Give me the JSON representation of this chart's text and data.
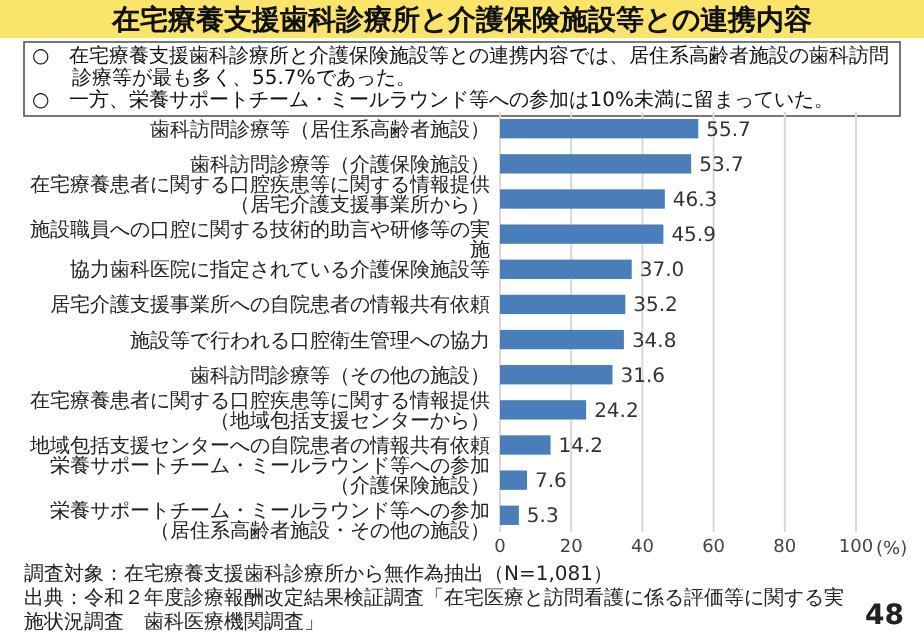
{
  "chart_data": {
    "type": "bar",
    "orientation": "horizontal",
    "title": "在宅療養支援歯科診療所と介護保険施設等との連携内容",
    "subtitle": "○　在宅療養支援歯科診療所と介護保険施設等との連携内容では、居住系高齢者施設の歯科訪問診療等が最も多く、55.7%であった。\n○　一方、栄養サポートチーム・ミールラウンド等への参加は10%未満に留まっていた。",
    "categories": [
      "歯科訪問診療等（居住系高齢者施設）",
      "歯科訪問診療等（介護保険施設）",
      "在宅療養患者に関する口腔疾患等に関する情報提供（居宅介護支援事業所から）",
      "施設職員への口腔に関する技術的助言や研修等の実施",
      "協力歯科医院に指定されている介護保険施設等",
      "居宅介護支援事業所への自院患者の情報共有依頼",
      "施設等で行われる口腔衛生管理への協力",
      "歯科訪問診療等（その他の施設）",
      "在宅療養患者に関する口腔疾患等に関する情報提供（地域包括支援センターから）",
      "地域包括支援センターへの自院患者の情報共有依頼",
      "栄養サポートチーム・ミールラウンド等への参加（介護保険施設）",
      "栄養サポートチーム・ミールラウンド等への参加（居住系高齢者施設・その他の施設）"
    ],
    "values": [
      55.7,
      53.7,
      46.3,
      45.9,
      37.0,
      35.2,
      34.8,
      31.6,
      24.2,
      14.2,
      7.6,
      5.3
    ],
    "color": "#4a7ebb",
    "value_labels": [
      "55.7",
      "53.7",
      "46.3",
      "45.9",
      "37.0",
      "35.2",
      "34.8",
      "31.6",
      "24.2",
      "14.2",
      "7.6",
      "5.3"
    ],
    "xlim": [
      0,
      100
    ],
    "xticks": [
      0,
      20,
      40,
      60,
      80,
      100
    ],
    "xlabel": "(%)",
    "grid": "x",
    "annotations": [
      "調査対象：在宅療養支援歯科診療所から無作為抽出（N=1,081）",
      "出典：令和２年度診療報酬改定結果検証調査「在宅医療と訪問看護に係る評価等に関する実施状況調査　歯科医療機関調査」",
      "48"
    ]
  }
}
